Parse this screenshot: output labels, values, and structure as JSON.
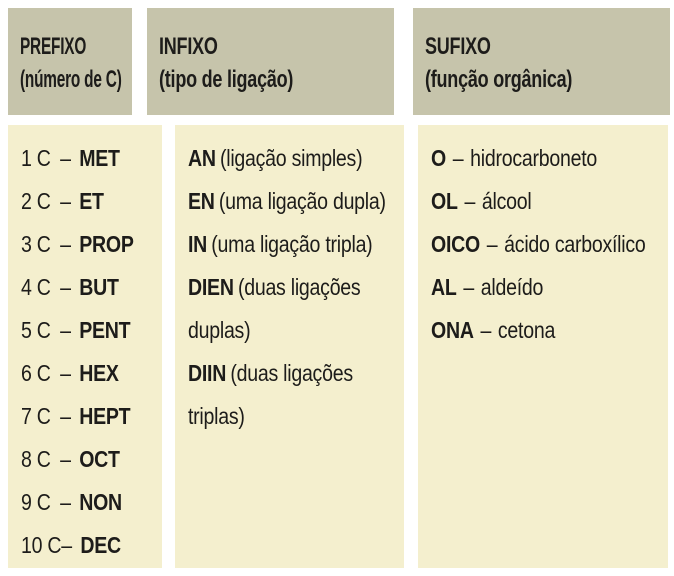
{
  "colors": {
    "page_bg": "#ffffff",
    "header_bg": "#c6c4ab",
    "body_bg": "#f4efce",
    "text": "#1d1c1a"
  },
  "columns": {
    "prefixo": {
      "header_line1": "PREFIXO",
      "header_line2": "(número de C)",
      "separator": "–",
      "rows": [
        {
          "count": "1 C",
          "term": "MET"
        },
        {
          "count": "2 C",
          "term": "ET"
        },
        {
          "count": "3 C",
          "term": "PROP"
        },
        {
          "count": "4 C",
          "term": "BUT"
        },
        {
          "count": "5 C",
          "term": "PENT"
        },
        {
          "count": "6 C",
          "term": "HEX"
        },
        {
          "count": "7 C",
          "term": "HEPT"
        },
        {
          "count": "8 C",
          "term": "OCT"
        },
        {
          "count": "9 C",
          "term": "NON"
        },
        {
          "count": "10 C",
          "term": "DEC"
        }
      ]
    },
    "infixo": {
      "header_line1": "INFIXO",
      "header_line2": "(tipo de ligação)",
      "rows": [
        {
          "term": "AN",
          "desc": "(ligação simples)"
        },
        {
          "term": "EN",
          "desc": "(uma ligação dupla)"
        },
        {
          "term": "IN",
          "desc": "(uma ligação tripla)"
        },
        {
          "term": "DIEN",
          "desc": "(duas ligações duplas)"
        },
        {
          "term": "DIIN",
          "desc": "(duas ligações triplas)"
        }
      ]
    },
    "sufixo": {
      "header_line1": "SUFIXO",
      "header_line2": "(função orgânica)",
      "separator": "–",
      "rows": [
        {
          "term": "O",
          "desc": "hidrocarboneto"
        },
        {
          "term": "OL",
          "desc": "álcool"
        },
        {
          "term": "OICO",
          "desc": "ácido carboxílico"
        },
        {
          "term": "AL",
          "desc": "aldeído"
        },
        {
          "term": "ONA",
          "desc": "cetona"
        }
      ]
    }
  }
}
